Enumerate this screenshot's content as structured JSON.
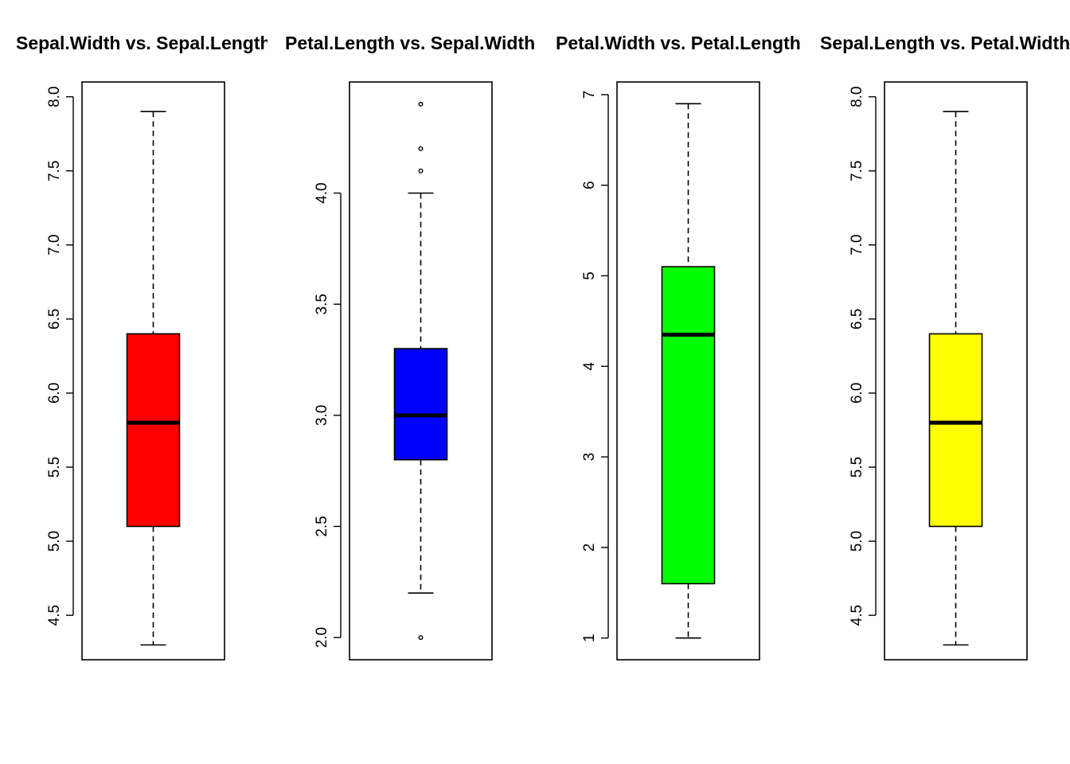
{
  "chart_data": [
    {
      "type": "box",
      "title": "Sepal.Width vs. Sepal.Length",
      "color": "#ff0000",
      "ylim": [
        4.2,
        8.1
      ],
      "yticks": [
        4.5,
        5.0,
        5.5,
        6.0,
        6.5,
        7.0,
        7.5,
        8.0
      ],
      "ytick_labels": [
        "4.5",
        "5.0",
        "5.5",
        "6.0",
        "6.5",
        "7.0",
        "7.5",
        "8.0"
      ],
      "whisker_low": 4.3,
      "q1": 5.1,
      "median": 5.8,
      "q3": 6.4,
      "whisker_high": 7.9,
      "outliers": []
    },
    {
      "type": "box",
      "title": "Petal.Length vs. Sepal.Width",
      "color": "#0000ff",
      "ylim": [
        1.9,
        4.5
      ],
      "yticks": [
        2.0,
        2.5,
        3.0,
        3.5,
        4.0
      ],
      "ytick_labels": [
        "2.0",
        "2.5",
        "3.0",
        "3.5",
        "4.0"
      ],
      "whisker_low": 2.2,
      "q1": 2.8,
      "median": 3.0,
      "q3": 3.3,
      "whisker_high": 4.0,
      "outliers": [
        2.0,
        4.1,
        4.2,
        4.4
      ]
    },
    {
      "type": "box",
      "title": "Petal.Width vs. Petal.Length",
      "color": "#00ff00",
      "ylim": [
        0.76,
        7.14
      ],
      "yticks": [
        1,
        2,
        3,
        4,
        5,
        6,
        7
      ],
      "ytick_labels": [
        "1",
        "2",
        "3",
        "4",
        "5",
        "6",
        "7"
      ],
      "whisker_low": 1.0,
      "q1": 1.6,
      "median": 4.35,
      "q3": 5.1,
      "whisker_high": 6.9,
      "outliers": []
    },
    {
      "type": "box",
      "title": "Sepal.Length vs. Petal.Width",
      "color": "#ffff00",
      "ylim": [
        4.2,
        8.1
      ],
      "yticks": [
        4.5,
        5.0,
        5.5,
        6.0,
        6.5,
        7.0,
        7.5,
        8.0
      ],
      "ytick_labels": [
        "4.5",
        "5.0",
        "5.5",
        "6.0",
        "6.5",
        "7.0",
        "7.5",
        "8.0"
      ],
      "whisker_low": 4.3,
      "q1": 5.1,
      "median": 5.8,
      "q3": 6.4,
      "whisker_high": 7.9,
      "outliers": []
    }
  ]
}
